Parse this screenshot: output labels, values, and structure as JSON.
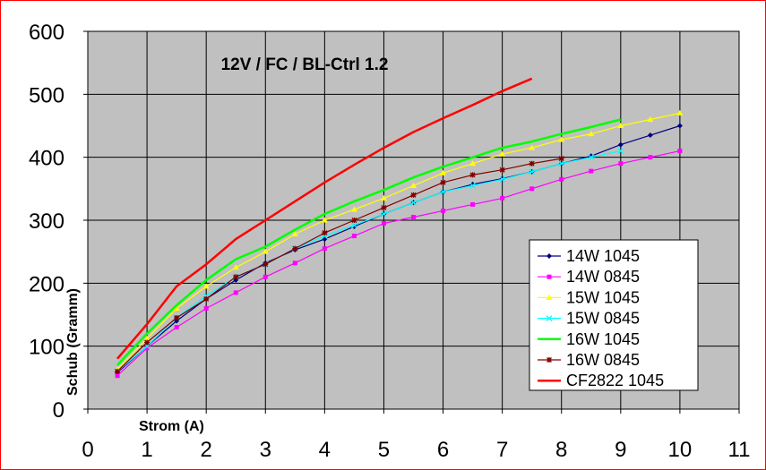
{
  "chart_data": {
    "type": "line",
    "title": "12V / FC / BL-Ctrl 1.2",
    "xlabel": "Strom (A)",
    "ylabel": "Schub (Gramm)",
    "xlim": [
      0,
      11
    ],
    "ylim": [
      0,
      600
    ],
    "x_ticks": [
      "0",
      "1",
      "2",
      "3",
      "4",
      "5",
      "6",
      "7",
      "8",
      "9",
      "10",
      "11"
    ],
    "y_ticks": [
      "0",
      "100",
      "200",
      "300",
      "400",
      "500",
      "600"
    ],
    "grid": true,
    "plot_background": "#c0c0c0",
    "legend_position": "right",
    "series": [
      {
        "name": "14W 1045",
        "color": "#000080",
        "marker": "diamond",
        "x": [
          0.5,
          1,
          1.5,
          2,
          2.5,
          3,
          3.5,
          4,
          4.5,
          5,
          5.5,
          6,
          6.5,
          7,
          7.5,
          8,
          8.5,
          9,
          9.5,
          10
        ],
        "y": [
          58,
          100,
          140,
          175,
          205,
          232,
          253,
          270,
          290,
          310,
          328,
          345,
          357,
          366,
          377,
          390,
          402,
          420,
          435,
          450
        ]
      },
      {
        "name": "14W 0845",
        "color": "#ff00ff",
        "marker": "square",
        "x": [
          0.5,
          1,
          1.5,
          2,
          2.5,
          3,
          3.5,
          4,
          4.5,
          5,
          5.5,
          6,
          6.5,
          7,
          7.5,
          8,
          8.5,
          9,
          9.5,
          10
        ],
        "y": [
          53,
          97,
          130,
          160,
          185,
          210,
          232,
          255,
          275,
          295,
          305,
          315,
          325,
          335,
          350,
          365,
          378,
          390,
          400,
          410
        ]
      },
      {
        "name": "15W 1045",
        "color": "#ffff00",
        "marker": "triangle",
        "x": [
          0.5,
          1,
          1.5,
          2,
          2.5,
          3,
          3.5,
          4,
          4.5,
          5,
          5.5,
          6,
          6.5,
          7,
          7.5,
          8,
          8.5,
          9,
          9.5,
          10
        ],
        "y": [
          63,
          112,
          160,
          195,
          225,
          250,
          278,
          300,
          317,
          335,
          355,
          375,
          390,
          405,
          415,
          428,
          437,
          450,
          460,
          470
        ]
      },
      {
        "name": "15W 0845",
        "color": "#00ffff",
        "marker": "x",
        "x": [
          0.5,
          1,
          1.5,
          2,
          2.5,
          3,
          3.5,
          4,
          4.5,
          5,
          5.5,
          6,
          6.5,
          7,
          7.5,
          8,
          8.5,
          9
        ],
        "y": [
          60,
          100,
          145,
          180,
          210,
          230,
          255,
          275,
          292,
          310,
          328,
          345,
          355,
          365,
          377,
          390,
          400,
          410
        ]
      },
      {
        "name": "16W 1045",
        "color": "#00ff00",
        "marker": "none",
        "x": [
          0.5,
          1,
          1.5,
          2,
          2.5,
          3,
          3.5,
          4,
          4.5,
          5,
          5.5,
          6,
          6.5,
          7,
          7.5,
          8,
          8.5,
          9
        ],
        "y": [
          70,
          120,
          165,
          205,
          238,
          258,
          285,
          310,
          330,
          348,
          368,
          385,
          400,
          415,
          425,
          437,
          448,
          460
        ]
      },
      {
        "name": "16W 0845",
        "color": "#800000",
        "marker": "star",
        "x": [
          0.5,
          1,
          1.5,
          2,
          2.5,
          3,
          3.5,
          4,
          4.5,
          5,
          5.5,
          6,
          6.5,
          7,
          7.5,
          8
        ],
        "y": [
          60,
          106,
          145,
          175,
          210,
          230,
          255,
          280,
          300,
          320,
          340,
          360,
          372,
          380,
          390,
          398
        ]
      },
      {
        "name": "CF2822 1045",
        "color": "#ff0000",
        "marker": "none",
        "x": [
          0.5,
          1,
          1.5,
          2,
          2.5,
          3,
          3.5,
          4,
          4.5,
          5,
          5.5,
          6,
          6.5,
          7,
          7.5
        ],
        "y": [
          80,
          135,
          195,
          230,
          270,
          300,
          330,
          360,
          388,
          415,
          440,
          462,
          483,
          505,
          525
        ]
      }
    ]
  }
}
